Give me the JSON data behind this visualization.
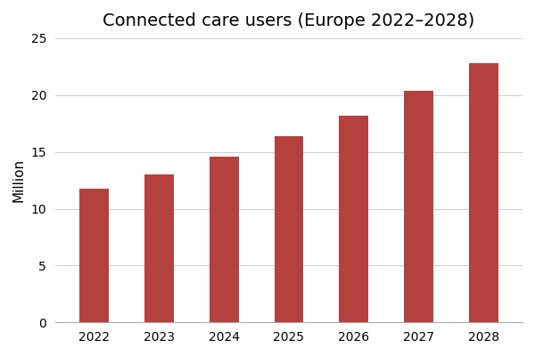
{
  "title": "Connected care users (Europe 2022–2028)",
  "years": [
    2022,
    2023,
    2024,
    2025,
    2026,
    2027,
    2028
  ],
  "values": [
    11.8,
    13.0,
    14.6,
    16.4,
    18.2,
    20.4,
    22.8
  ],
  "bar_color": "#b5413f",
  "ylabel": "Million",
  "ylim": [
    0,
    25
  ],
  "yticks": [
    0,
    5,
    10,
    15,
    20,
    25
  ],
  "background_color": "#ffffff",
  "title_fontsize": 14,
  "label_fontsize": 11,
  "tick_fontsize": 10,
  "bar_width": 0.45,
  "grid_color": "#d0d0d0",
  "grid_linewidth": 0.8
}
